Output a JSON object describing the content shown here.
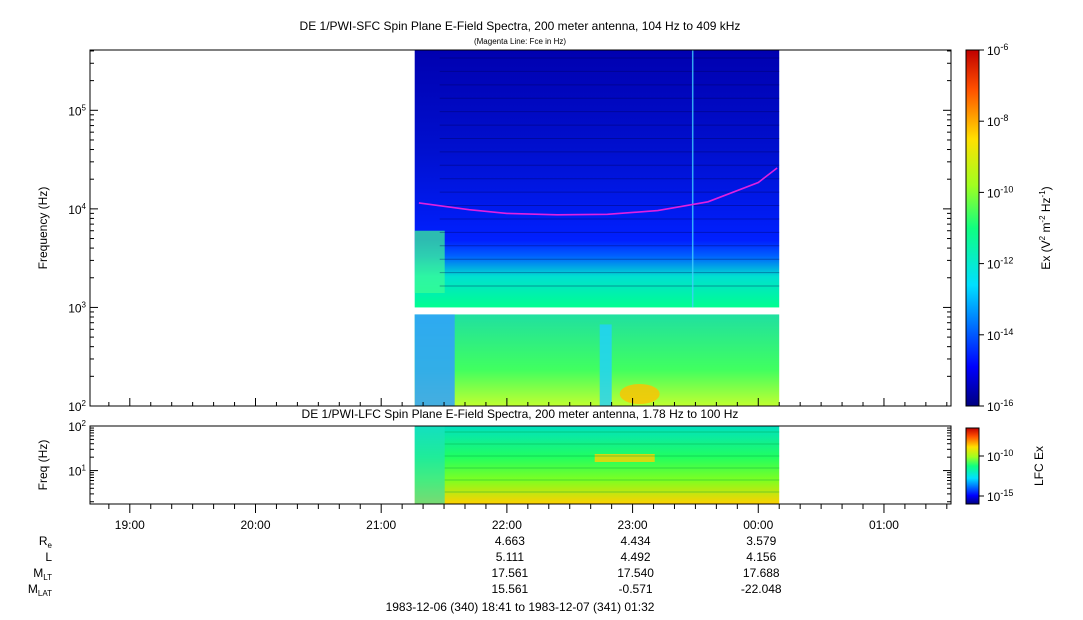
{
  "chart_data": [
    {
      "type": "heatmap",
      "title": "DE 1/PWI-SFC  Spin Plane E-Field Spectra, 200 meter antenna, 104 Hz to 409 kHz",
      "subtitle": "(Magenta Line: Fce in Hz)",
      "ylabel": "Frequency (Hz)",
      "yscale": "log",
      "ylim": [
        100,
        409000
      ],
      "y_ticks": [
        "10^2",
        "10^3",
        "10^4",
        "10^5"
      ],
      "x_range": [
        "18:41",
        "01:32"
      ],
      "data_time_range": [
        "21:16",
        "00:10"
      ],
      "colorbar": {
        "label": "Ex (V^2 m^-2 Hz^-1)",
        "label_parts": {
          "a": "Ex (V",
          "b": "2",
          "c": " m",
          "d": "-2",
          "e": " Hz",
          "f": "-1",
          "g": ")"
        },
        "scale": "log",
        "range": [
          1e-16,
          1e-06
        ],
        "tick_labels": [
          {
            "base": "10",
            "exp": "-6"
          },
          {
            "base": "10",
            "exp": "-8"
          },
          {
            "base": "10",
            "exp": "-10"
          },
          {
            "base": "10",
            "exp": "-12"
          },
          {
            "base": "10",
            "exp": "-14"
          },
          {
            "base": "10",
            "exp": "-16"
          }
        ]
      },
      "fce_line": {
        "color": "#e020e0",
        "time_hours": [
          21.3,
          21.7,
          22.0,
          22.4,
          22.8,
          23.2,
          23.6,
          24.0,
          24.15
        ],
        "freq_hz": [
          11500,
          9800,
          9000,
          8700,
          8800,
          9600,
          11800,
          18500,
          26000
        ]
      }
    },
    {
      "type": "heatmap",
      "title": "DE 1/PWI-LFC  Spin Plane E-Field Spectra, 200 meter antenna, 1.78 Hz to 100 Hz",
      "ylabel": "Freq (Hz)",
      "yscale": "log",
      "ylim": [
        1.78,
        100
      ],
      "y_ticks": [
        "10^1",
        "10^2"
      ],
      "colorbar": {
        "label": "LFC Ex",
        "scale": "log",
        "tick_labels": [
          {
            "base": "10",
            "exp": "-10"
          },
          {
            "base": "10",
            "exp": "-15"
          }
        ]
      }
    }
  ],
  "x_axis": {
    "tick_labels": [
      "19:00",
      "20:00",
      "21:00",
      "22:00",
      "23:00",
      "00:00",
      "01:00"
    ],
    "tick_hours": [
      19,
      20,
      21,
      22,
      23,
      24,
      25
    ]
  },
  "ephemeris": {
    "rows": [
      {
        "main": "R",
        "sub": "e",
        "values": [
          "4.663",
          "4.434",
          "3.579"
        ]
      },
      {
        "main": "L",
        "sub": "",
        "values": [
          "5.111",
          "4.492",
          "4.156"
        ]
      },
      {
        "main": "M",
        "sub": "LT",
        "values": [
          "17.561",
          "17.540",
          "17.688"
        ]
      },
      {
        "main": "M",
        "sub": "LAT",
        "values": [
          "15.561",
          "-0.571",
          "-22.048"
        ]
      }
    ],
    "value_hours": [
      22,
      23,
      24
    ]
  },
  "footer_text": "1983-12-06 (340) 18:41 to 1983-12-07 (341) 01:32"
}
